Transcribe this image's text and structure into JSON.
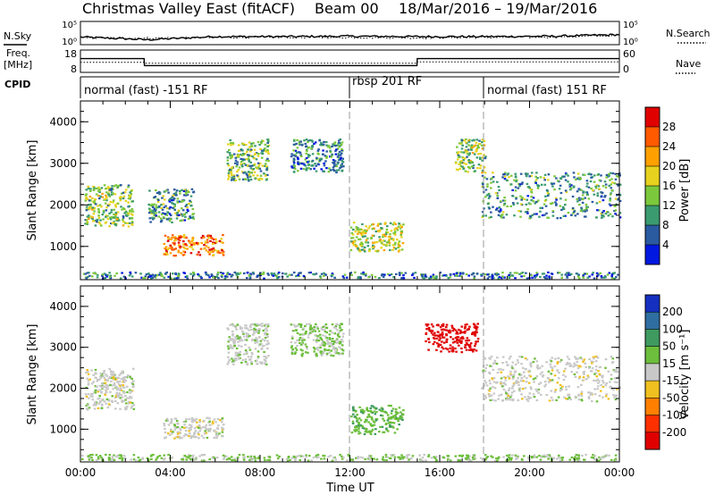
{
  "header": {
    "station": "Christmas Valley East (fitACF)",
    "beam": "Beam 00",
    "date_range": "18/Mar/2016 – 19/Mar/2016"
  },
  "left_labels": {
    "nsky": "N.Sky",
    "freq": "Freq.",
    "freq_unit": "[MHz]",
    "cpid": "CPID"
  },
  "right_labels": {
    "nsearch": "N.Search",
    "nave": "Nave"
  },
  "cpid_segments": [
    {
      "label": "normal (fast) -151 RF"
    },
    {
      "label": "rbsp 201 RF"
    },
    {
      "label": "normal (fast) 151 RF"
    }
  ],
  "colorbar_power": {
    "title": "Power [dB]",
    "ticks": [
      "28",
      "24",
      "20",
      "16",
      "12",
      "8",
      "4"
    ],
    "colors": [
      "#e00000",
      "#ff5a00",
      "#ffa000",
      "#e6d21e",
      "#7cc83c",
      "#3a9a70",
      "#2a5aa0",
      "#0018e0"
    ]
  },
  "colorbar_velocity": {
    "title": "Velocity [m s⁻¹]",
    "ticks": [
      "200",
      "100",
      "50",
      "15",
      "-15",
      "-50",
      "-100",
      "-200"
    ],
    "colors": [
      "#1530c0",
      "#2f6ea0",
      "#3f9a60",
      "#6dbe3c",
      "#c8c8c8",
      "#f0c020",
      "#ff8000",
      "#ff3000",
      "#e00000"
    ]
  },
  "chart_data": [
    {
      "type": "line",
      "title": "N.Sky / N.Search",
      "y_tick_labels": [
        "10^5",
        "10^0"
      ],
      "y2_tick_labels": [
        "10^5",
        "10^0"
      ],
      "x": [
        "00:00",
        "03:00",
        "06:00",
        "09:00",
        "12:00",
        "15:00",
        "18:00",
        "21:00",
        "24:00"
      ],
      "series": [
        {
          "name": "N.Sky",
          "values": [
            1.5,
            0.8,
            1.6,
            1.6,
            1.7,
            1.6,
            1.6,
            1.7,
            2.1
          ]
        },
        {
          "name": "N.Search",
          "values": [
            1.3,
            1.2,
            1.4,
            1.4,
            1.4,
            1.3,
            1.4,
            1.5,
            1.9
          ]
        }
      ]
    },
    {
      "type": "line",
      "title": "Freq. / Nave",
      "ylabel": "Freq. [MHz]",
      "ylim": [
        8,
        18
      ],
      "y2label": "Nave",
      "y2lim": [
        0,
        60
      ],
      "y_ticks": [
        18,
        8
      ],
      "y2_ticks": [
        60,
        0
      ],
      "x": [
        "00:00",
        "02:50",
        "02:51",
        "14:59",
        "15:00",
        "24:00"
      ],
      "series": [
        {
          "name": "Freq.",
          "values": [
            14.2,
            14.2,
            10.3,
            10.3,
            14.2,
            14.2
          ]
        },
        {
          "name": "Nave",
          "values": [
            25,
            25,
            22,
            22,
            26,
            26
          ]
        }
      ]
    },
    {
      "type": "heatmap",
      "title": "Power [dB]",
      "xlabel": "",
      "ylabel": "Slant Range [km]",
      "xlim": [
        "00:00",
        "24:00"
      ],
      "ylim": [
        200,
        4500
      ],
      "x_ticks": [
        "00:00",
        "04:00",
        "08:00",
        "12:00",
        "16:00",
        "20:00",
        "00:00"
      ],
      "y_ticks": [
        1000,
        2000,
        3000,
        4000
      ],
      "clim": [
        0,
        32
      ],
      "regions": [
        {
          "start": "00:10",
          "end": "02:20",
          "range_low": 1500,
          "range_high": 2500,
          "value": 14
        },
        {
          "start": "03:40",
          "end": "06:20",
          "range_low": 800,
          "range_high": 1300,
          "value": 24
        },
        {
          "start": "03:00",
          "end": "05:00",
          "range_low": 1600,
          "range_high": 2400,
          "value": 10
        },
        {
          "start": "06:30",
          "end": "08:20",
          "range_low": 2600,
          "range_high": 3600,
          "value": 12
        },
        {
          "start": "09:20",
          "end": "11:40",
          "range_low": 2800,
          "range_high": 3600,
          "value": 9
        },
        {
          "start": "12:00",
          "end": "14:20",
          "range_low": 900,
          "range_high": 1600,
          "value": 17
        },
        {
          "start": "16:40",
          "end": "18:00",
          "range_low": 2800,
          "range_high": 3600,
          "value": 14
        },
        {
          "start": "17:50",
          "end": "24:00",
          "range_low": 1700,
          "range_high": 2800,
          "value": 10
        },
        {
          "start": "00:00",
          "end": "24:00",
          "range_low": 250,
          "range_high": 400,
          "value": 8
        }
      ]
    },
    {
      "type": "heatmap",
      "title": "Velocity [m s⁻¹]",
      "xlabel": "Time UT",
      "ylabel": "Slant Range [km]",
      "xlim": [
        "00:00",
        "24:00"
      ],
      "ylim": [
        200,
        4500
      ],
      "x_ticks": [
        "00:00",
        "04:00",
        "08:00",
        "12:00",
        "16:00",
        "20:00",
        "00:00"
      ],
      "y_ticks": [
        1000,
        2000,
        3000,
        4000
      ],
      "clim": [
        -200,
        200
      ],
      "regions": [
        {
          "start": "00:10",
          "end": "02:20",
          "range_low": 1500,
          "range_high": 2500,
          "value": 0
        },
        {
          "start": "03:40",
          "end": "06:20",
          "range_low": 800,
          "range_high": 1300,
          "value": 0
        },
        {
          "start": "06:30",
          "end": "08:20",
          "range_low": 2600,
          "range_high": 3600,
          "value": 5
        },
        {
          "start": "09:20",
          "end": "11:40",
          "range_low": 2800,
          "range_high": 3600,
          "value": 20
        },
        {
          "start": "12:00",
          "end": "14:20",
          "range_low": 900,
          "range_high": 1600,
          "value": 40
        },
        {
          "start": "15:20",
          "end": "17:40",
          "range_low": 2900,
          "range_high": 3600,
          "value": -220
        },
        {
          "start": "17:50",
          "end": "24:00",
          "range_low": 1700,
          "range_high": 2800,
          "value": 0
        },
        {
          "start": "00:00",
          "end": "24:00",
          "range_low": 250,
          "range_high": 400,
          "value": 20
        }
      ]
    }
  ]
}
